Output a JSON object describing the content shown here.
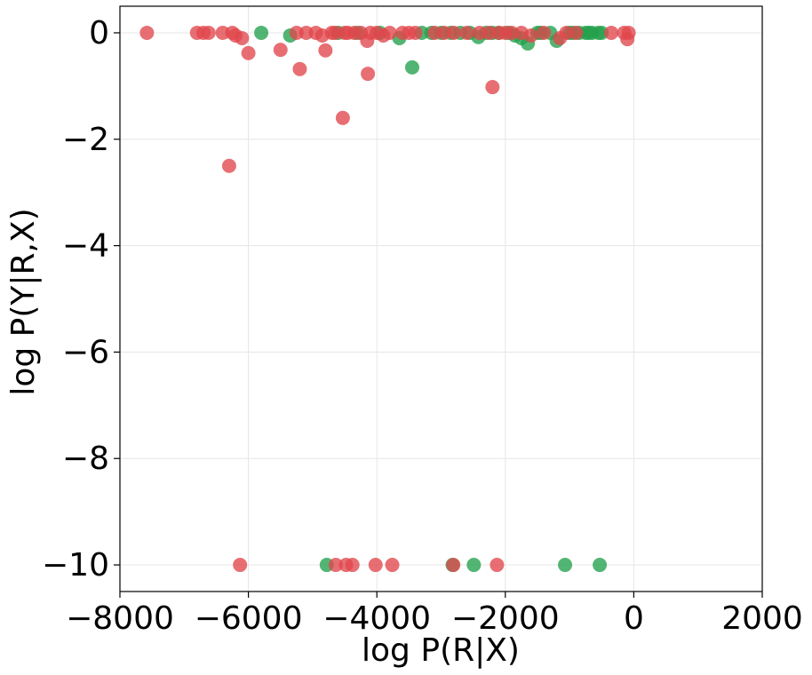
{
  "chart_data": {
    "type": "scatter",
    "title": "",
    "xlabel": "log P(R|X)",
    "ylabel": "log P(Y|R,X)",
    "xlim": [
      -8000,
      2000
    ],
    "ylim": [
      -10.5,
      0.5
    ],
    "xticks": [
      -8000,
      -6000,
      -4000,
      -2000,
      0,
      2000
    ],
    "yticks": [
      0,
      -2,
      -4,
      -6,
      -8,
      -10
    ],
    "xtick_labels": [
      "−8000",
      "−6000",
      "−4000",
      "−2000",
      "0",
      "2000"
    ],
    "ytick_labels": [
      "0",
      "−2",
      "−4",
      "−6",
      "−8",
      "−10"
    ],
    "grid": true,
    "legend": "none",
    "series": [
      {
        "color": "#22a04b",
        "points": [
          [
            -5800,
            0
          ],
          [
            -5350,
            -0.05
          ],
          [
            -4600,
            0
          ],
          [
            -4300,
            0
          ],
          [
            -3950,
            0
          ],
          [
            -3650,
            -0.1
          ],
          [
            -3450,
            -0.65
          ],
          [
            -3300,
            0
          ],
          [
            -3150,
            0
          ],
          [
            -3000,
            0
          ],
          [
            -2850,
            0
          ],
          [
            -2700,
            0
          ],
          [
            -2550,
            0
          ],
          [
            -2420,
            -0.08
          ],
          [
            -2300,
            0
          ],
          [
            -2200,
            0
          ],
          [
            -2100,
            0
          ],
          [
            -1950,
            0
          ],
          [
            -1850,
            -0.05
          ],
          [
            -1750,
            -0.1
          ],
          [
            -1650,
            -0.2
          ],
          [
            -1500,
            0
          ],
          [
            -1450,
            0
          ],
          [
            -1300,
            0
          ],
          [
            -1200,
            -0.15
          ],
          [
            -1000,
            0
          ],
          [
            -950,
            0
          ],
          [
            -850,
            0
          ],
          [
            -750,
            0
          ],
          [
            -700,
            0
          ],
          [
            -650,
            0
          ],
          [
            -550,
            0
          ],
          [
            -500,
            0
          ],
          [
            -4780,
            -10
          ],
          [
            -2820,
            -10
          ],
          [
            -2490,
            -10
          ],
          [
            -1070,
            -10
          ],
          [
            -530,
            -10
          ]
        ]
      },
      {
        "color": "#e0464b",
        "points": [
          [
            -7580,
            0
          ],
          [
            -6800,
            0
          ],
          [
            -6700,
            0
          ],
          [
            -6620,
            0
          ],
          [
            -6400,
            0
          ],
          [
            -6250,
            0
          ],
          [
            -6200,
            -0.05
          ],
          [
            -6100,
            -0.1
          ],
          [
            -6000,
            -0.38
          ],
          [
            -5500,
            -0.32
          ],
          [
            -5250,
            0
          ],
          [
            -5200,
            -0.68
          ],
          [
            -5100,
            0
          ],
          [
            -4950,
            0
          ],
          [
            -4850,
            -0.05
          ],
          [
            -4800,
            -0.33
          ],
          [
            -4700,
            0
          ],
          [
            -4650,
            0
          ],
          [
            -4500,
            0
          ],
          [
            -4450,
            0
          ],
          [
            -4350,
            0
          ],
          [
            -4250,
            0
          ],
          [
            -4150,
            -0.15
          ],
          [
            -4100,
            0
          ],
          [
            -4000,
            0
          ],
          [
            -3900,
            -0.05
          ],
          [
            -3800,
            0
          ],
          [
            -3600,
            0
          ],
          [
            -3500,
            0
          ],
          [
            -3400,
            0
          ],
          [
            -3100,
            0
          ],
          [
            -2950,
            0
          ],
          [
            -2800,
            0
          ],
          [
            -2600,
            0
          ],
          [
            -2400,
            0
          ],
          [
            -2250,
            0
          ],
          [
            -2100,
            0
          ],
          [
            -2000,
            0
          ],
          [
            -1900,
            0
          ],
          [
            -1750,
            0
          ],
          [
            -1600,
            -0.05
          ],
          [
            -1400,
            0
          ],
          [
            -1150,
            -0.1
          ],
          [
            -1050,
            0
          ],
          [
            -900,
            0
          ],
          [
            -350,
            0
          ],
          [
            -150,
            0
          ],
          [
            -100,
            -0.12
          ],
          [
            -80,
            0
          ],
          [
            -6300,
            -2.5
          ],
          [
            -4530,
            -1.6
          ],
          [
            -4140,
            -0.77
          ],
          [
            -2200,
            -1.02
          ],
          [
            -6130,
            -10
          ],
          [
            -4640,
            -10
          ],
          [
            -4480,
            -10
          ],
          [
            -4380,
            -10
          ],
          [
            -4020,
            -10
          ],
          [
            -3760,
            -10
          ],
          [
            -2810,
            -10
          ],
          [
            -2130,
            -10
          ]
        ]
      }
    ]
  }
}
